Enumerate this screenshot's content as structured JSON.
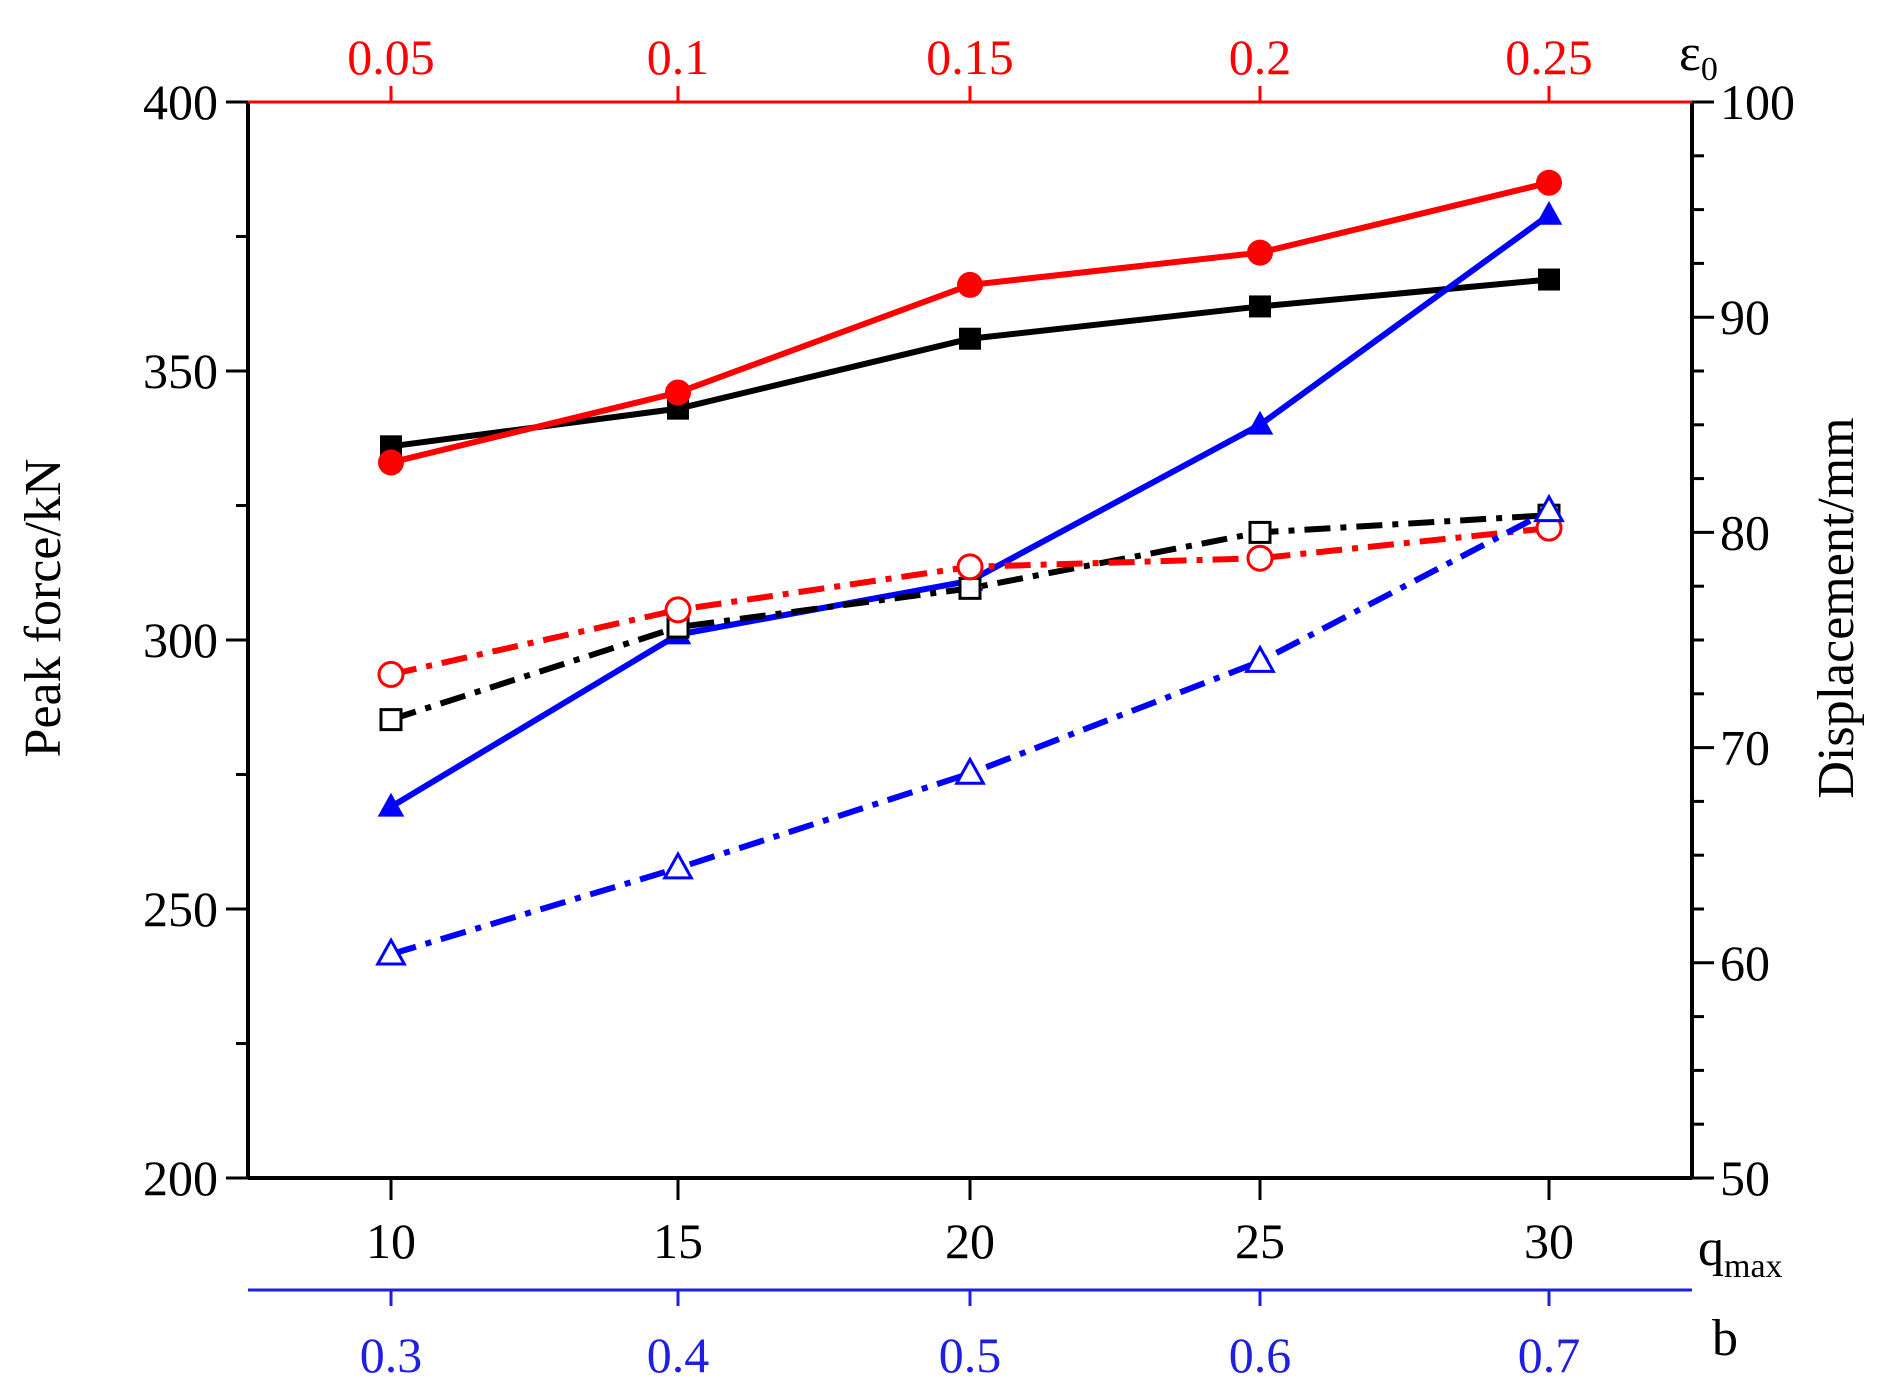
{
  "chart_data": {
    "type": "line",
    "left_axis": {
      "label": "Peak force/kN",
      "range": [
        200,
        400
      ],
      "ticks": [
        "200",
        "250",
        "300",
        "350",
        "400"
      ]
    },
    "right_axis": {
      "label": "Displacement/mm",
      "range": [
        50,
        100
      ],
      "ticks": [
        "50",
        "60",
        "70",
        "80",
        "90",
        "100"
      ]
    },
    "bottom_axis": {
      "label": "q",
      "label_sub": "max",
      "ticks": [
        "10",
        "15",
        "20",
        "25",
        "30"
      ],
      "color": "#000000"
    },
    "bottom_axis_2": {
      "label": "b",
      "ticks": [
        "0.3",
        "0.4",
        "0.5",
        "0.6",
        "0.7"
      ],
      "color": "#1f1fe0"
    },
    "top_axis": {
      "label": "ε",
      "label_sub": "0",
      "ticks": [
        "0.05",
        "0.1",
        "0.15",
        "0.2",
        "0.25"
      ],
      "color": "#ff0000"
    },
    "grid": false,
    "legend": "none",
    "series": [
      {
        "id": "force-qmax",
        "axis": "left",
        "color": "#000000",
        "marker": "square",
        "filled": true,
        "dash": "solid",
        "values": [
          336,
          343,
          356,
          362,
          367
        ]
      },
      {
        "id": "force-eps0",
        "axis": "left",
        "color": "#ff0000",
        "marker": "circle",
        "filled": true,
        "dash": "solid",
        "values": [
          333,
          346,
          366,
          372,
          385
        ]
      },
      {
        "id": "force-b",
        "axis": "left",
        "color": "#0000ff",
        "marker": "triangle",
        "filled": true,
        "dash": "solid",
        "values": [
          269,
          301,
          311,
          340,
          379
        ]
      },
      {
        "id": "disp-qmax",
        "axis": "right",
        "color": "#000000",
        "marker": "square",
        "filled": false,
        "dash": "dashdot",
        "values": [
          71.3,
          75.6,
          77.4,
          80.0,
          80.8
        ]
      },
      {
        "id": "disp-eps0",
        "axis": "right",
        "color": "#ff0000",
        "marker": "circle",
        "filled": false,
        "dash": "dashdot",
        "values": [
          73.4,
          76.4,
          78.4,
          78.8,
          80.2
        ]
      },
      {
        "id": "disp-b",
        "axis": "right",
        "color": "#0000ff",
        "marker": "triangle",
        "filled": false,
        "dash": "dashdot",
        "values": [
          60.4,
          64.4,
          68.8,
          74.0,
          81.0
        ]
      }
    ]
  }
}
